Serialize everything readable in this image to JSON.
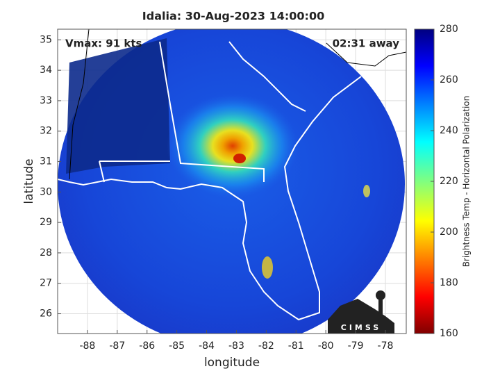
{
  "title": "Idalia: 30-Aug-2023 14:00:00",
  "annotations": {
    "vmax": "Vmax: 91 kts",
    "time_away": "02:31 away"
  },
  "map": {
    "xlabel": "longitude",
    "ylabel": "latitude",
    "xlim": [
      -89,
      -77.3
    ],
    "ylim": [
      25.35,
      35.35
    ],
    "xticks": [
      -88,
      -87,
      -86,
      -85,
      -84,
      -83,
      -82,
      -81,
      -80,
      -79,
      -78
    ],
    "yticks": [
      26,
      27,
      28,
      29,
      30,
      31,
      32,
      33,
      34,
      35
    ],
    "grid": true
  },
  "colorbar": {
    "label": "Brightness Temp - Horizontal Polarization",
    "lim": [
      160,
      280
    ],
    "ticks": [
      160,
      180,
      200,
      220,
      240,
      260,
      280
    ]
  },
  "logo": "CIMSS"
}
